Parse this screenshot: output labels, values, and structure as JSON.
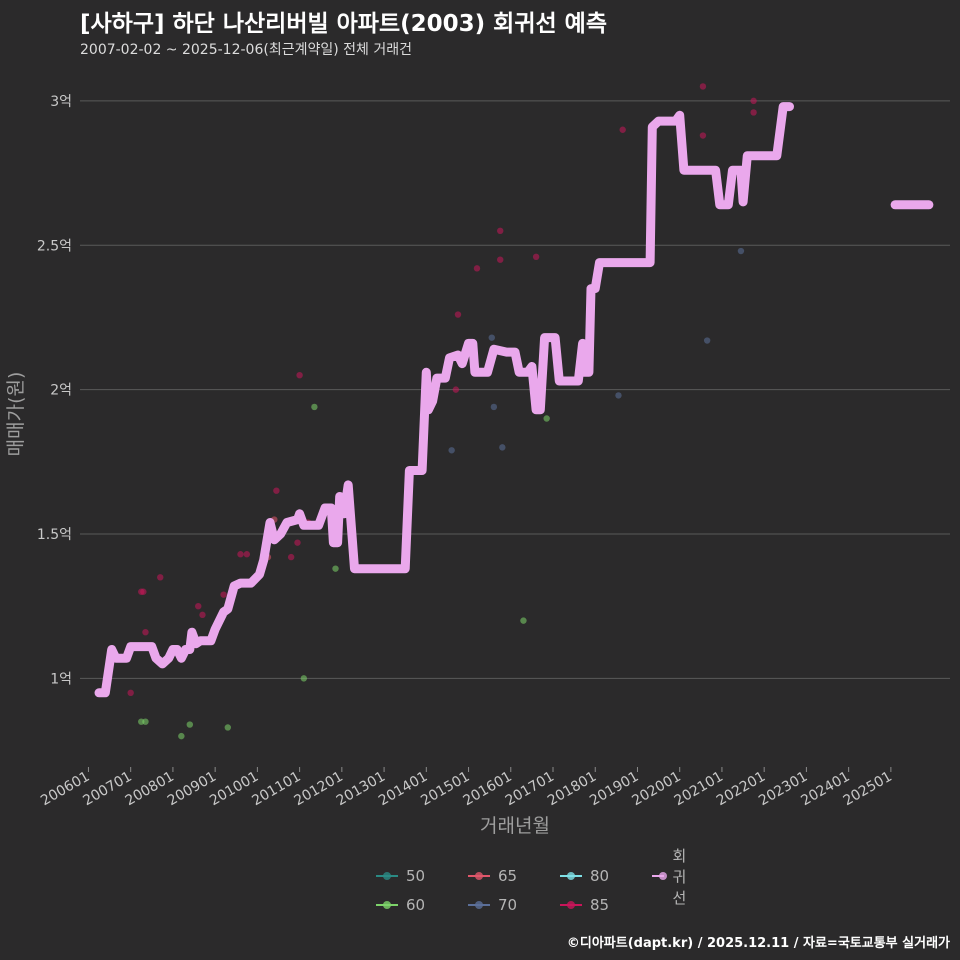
{
  "title": "[사하구] 하단 나산리버빌 아파트(2003) 회귀선 예측",
  "subtitle": "2007-02-02 ~ 2025-12-06(최근계약일) 전체 거래건",
  "caption": "©디아파트(dapt.kr) / 2025.12.11 / 자료=국토교통부 실거래가",
  "colors": {
    "background": "#2b2a2b",
    "grid": "#5a5a5a",
    "regression": "#eaa8ec",
    "s50": "#2a8a84",
    "s60": "#7dd36a",
    "s65": "#e0566a",
    "s70": "#5b6f99",
    "s80": "#7fe0e6",
    "s85": "#c9155a"
  },
  "legend": [
    {
      "label": "50",
      "key": "s50"
    },
    {
      "label": "65",
      "key": "s65"
    },
    {
      "label": "80",
      "key": "s80"
    },
    {
      "label": "회귀선",
      "key": "regression"
    },
    {
      "label": "60",
      "key": "s60"
    },
    {
      "label": "70",
      "key": "s70"
    },
    {
      "label": "85",
      "key": "s85"
    }
  ],
  "chart_data": {
    "type": "scatter",
    "xlabel": "거래년월",
    "ylabel": "매매가(원)",
    "xlim": [
      2005.8,
      2026.4
    ],
    "ylim": [
      0.7,
      3.1
    ],
    "x_ticks": [
      {
        "label": "200601",
        "value": 2006.0
      },
      {
        "label": "200701",
        "value": 2007.0
      },
      {
        "label": "200801",
        "value": 2008.0
      },
      {
        "label": "200901",
        "value": 2009.0
      },
      {
        "label": "201001",
        "value": 2010.0
      },
      {
        "label": "201101",
        "value": 2011.0
      },
      {
        "label": "201201",
        "value": 2012.0
      },
      {
        "label": "201301",
        "value": 2013.0
      },
      {
        "label": "201401",
        "value": 2014.0
      },
      {
        "label": "201501",
        "value": 2015.0
      },
      {
        "label": "201601",
        "value": 2016.0
      },
      {
        "label": "201701",
        "value": 2017.0
      },
      {
        "label": "201801",
        "value": 2018.0
      },
      {
        "label": "201901",
        "value": 2019.0
      },
      {
        "label": "202001",
        "value": 2020.0
      },
      {
        "label": "202101",
        "value": 2021.0
      },
      {
        "label": "202201",
        "value": 2022.0
      },
      {
        "label": "202301",
        "value": 2023.0
      },
      {
        "label": "202401",
        "value": 2024.0
      },
      {
        "label": "202501",
        "value": 2025.0
      }
    ],
    "y_ticks": [
      {
        "label": "1억",
        "value": 1.0
      },
      {
        "label": "1.5억",
        "value": 1.5
      },
      {
        "label": "2억",
        "value": 2.0
      },
      {
        "label": "2.5억",
        "value": 2.5
      },
      {
        "label": "3억",
        "value": 3.0
      }
    ],
    "series": [
      {
        "name": "60",
        "key": "s60",
        "points": [
          [
            2007.25,
            0.85
          ],
          [
            2007.35,
            0.85
          ],
          [
            2008.2,
            0.8
          ],
          [
            2008.4,
            0.84
          ],
          [
            2009.3,
            0.83
          ],
          [
            2011.1,
            1.0
          ],
          [
            2011.85,
            1.38
          ],
          [
            2011.35,
            1.94
          ],
          [
            2016.3,
            1.2
          ],
          [
            2016.85,
            1.9
          ]
        ]
      },
      {
        "name": "70",
        "key": "s70",
        "points": [
          [
            2014.6,
            1.79
          ],
          [
            2015.6,
            1.94
          ],
          [
            2015.8,
            1.8
          ],
          [
            2015.55,
            2.18
          ],
          [
            2018.55,
            1.98
          ],
          [
            2020.65,
            2.17
          ],
          [
            2021.45,
            2.48
          ]
        ]
      },
      {
        "name": "65",
        "key": "s65",
        "points": [
          [
            2010.25,
            1.42
          ],
          [
            2010.4,
            1.55
          ]
        ]
      },
      {
        "name": "85",
        "key": "s85",
        "points": [
          [
            2007.0,
            0.95
          ],
          [
            2007.25,
            1.3
          ],
          [
            2007.35,
            1.16
          ],
          [
            2007.7,
            1.35
          ],
          [
            2007.3,
            1.3
          ],
          [
            2008.6,
            1.25
          ],
          [
            2008.7,
            1.22
          ],
          [
            2009.2,
            1.29
          ],
          [
            2009.6,
            1.43
          ],
          [
            2009.75,
            1.43
          ],
          [
            2010.45,
            1.65
          ],
          [
            2010.8,
            1.42
          ],
          [
            2010.95,
            1.47
          ],
          [
            2011.0,
            2.05
          ],
          [
            2011.2,
            1.54
          ],
          [
            2012.1,
            1.63
          ],
          [
            2014.75,
            2.26
          ],
          [
            2014.7,
            2.0
          ],
          [
            2015.2,
            2.42
          ],
          [
            2015.75,
            2.55
          ],
          [
            2015.75,
            2.45
          ],
          [
            2016.6,
            2.46
          ],
          [
            2018.65,
            2.9
          ],
          [
            2020.55,
            3.05
          ],
          [
            2020.55,
            2.88
          ],
          [
            2021.75,
            3.0
          ],
          [
            2021.75,
            2.96
          ]
        ]
      }
    ],
    "regression": {
      "name": "회귀선",
      "segments": [
        [
          [
            2006.25,
            0.95
          ],
          [
            2006.4,
            0.95
          ],
          [
            2006.55,
            1.1
          ],
          [
            2006.65,
            1.07
          ],
          [
            2006.9,
            1.07
          ],
          [
            2007.0,
            1.11
          ],
          [
            2007.5,
            1.11
          ],
          [
            2007.6,
            1.07
          ],
          [
            2007.75,
            1.05
          ],
          [
            2007.9,
            1.07
          ],
          [
            2008.0,
            1.1
          ],
          [
            2008.1,
            1.1
          ],
          [
            2008.2,
            1.07
          ],
          [
            2008.3,
            1.1
          ],
          [
            2008.4,
            1.1
          ],
          [
            2008.45,
            1.16
          ],
          [
            2008.55,
            1.12
          ],
          [
            2008.65,
            1.13
          ],
          [
            2008.9,
            1.13
          ],
          [
            2009.0,
            1.17
          ],
          [
            2009.2,
            1.23
          ],
          [
            2009.3,
            1.24
          ],
          [
            2009.45,
            1.32
          ],
          [
            2009.6,
            1.33
          ],
          [
            2009.85,
            1.33
          ],
          [
            2010.05,
            1.36
          ],
          [
            2010.15,
            1.41
          ],
          [
            2010.3,
            1.54
          ],
          [
            2010.4,
            1.48
          ],
          [
            2010.55,
            1.5
          ],
          [
            2010.7,
            1.54
          ],
          [
            2010.95,
            1.55
          ],
          [
            2011.0,
            1.57
          ],
          [
            2011.1,
            1.53
          ],
          [
            2011.45,
            1.53
          ],
          [
            2011.6,
            1.59
          ],
          [
            2011.75,
            1.59
          ],
          [
            2011.8,
            1.47
          ],
          [
            2011.9,
            1.47
          ],
          [
            2011.95,
            1.63
          ],
          [
            2012.05,
            1.57
          ],
          [
            2012.15,
            1.67
          ],
          [
            2012.3,
            1.38
          ],
          [
            2013.5,
            1.38
          ],
          [
            2013.6,
            1.72
          ],
          [
            2013.9,
            1.72
          ],
          [
            2014.0,
            2.06
          ],
          [
            2014.05,
            1.93
          ],
          [
            2014.15,
            1.96
          ],
          [
            2014.25,
            2.04
          ],
          [
            2014.45,
            2.04
          ],
          [
            2014.55,
            2.11
          ],
          [
            2014.75,
            2.12
          ],
          [
            2014.85,
            2.09
          ],
          [
            2015.0,
            2.16
          ],
          [
            2015.1,
            2.16
          ],
          [
            2015.15,
            2.06
          ],
          [
            2015.45,
            2.06
          ],
          [
            2015.6,
            2.14
          ],
          [
            2015.9,
            2.13
          ],
          [
            2016.1,
            2.13
          ],
          [
            2016.2,
            2.06
          ],
          [
            2016.4,
            2.06
          ],
          [
            2016.5,
            2.08
          ],
          [
            2016.6,
            1.93
          ],
          [
            2016.7,
            1.93
          ],
          [
            2016.8,
            2.18
          ],
          [
            2017.05,
            2.18
          ],
          [
            2017.15,
            2.03
          ],
          [
            2017.6,
            2.03
          ],
          [
            2017.7,
            2.16
          ],
          [
            2017.75,
            2.06
          ],
          [
            2017.85,
            2.06
          ],
          [
            2017.9,
            2.35
          ],
          [
            2018.0,
            2.35
          ],
          [
            2018.1,
            2.44
          ],
          [
            2019.3,
            2.44
          ],
          [
            2019.35,
            2.91
          ],
          [
            2019.5,
            2.93
          ],
          [
            2019.9,
            2.93
          ],
          [
            2020.0,
            2.95
          ],
          [
            2020.1,
            2.76
          ],
          [
            2020.85,
            2.76
          ],
          [
            2020.95,
            2.64
          ],
          [
            2021.15,
            2.64
          ],
          [
            2021.25,
            2.76
          ],
          [
            2021.45,
            2.76
          ],
          [
            2021.5,
            2.65
          ],
          [
            2021.6,
            2.81
          ],
          [
            2022.3,
            2.81
          ],
          [
            2022.45,
            2.98
          ],
          [
            2022.6,
            2.98
          ]
        ],
        [
          [
            2025.1,
            2.64
          ],
          [
            2025.9,
            2.64
          ]
        ]
      ]
    }
  }
}
